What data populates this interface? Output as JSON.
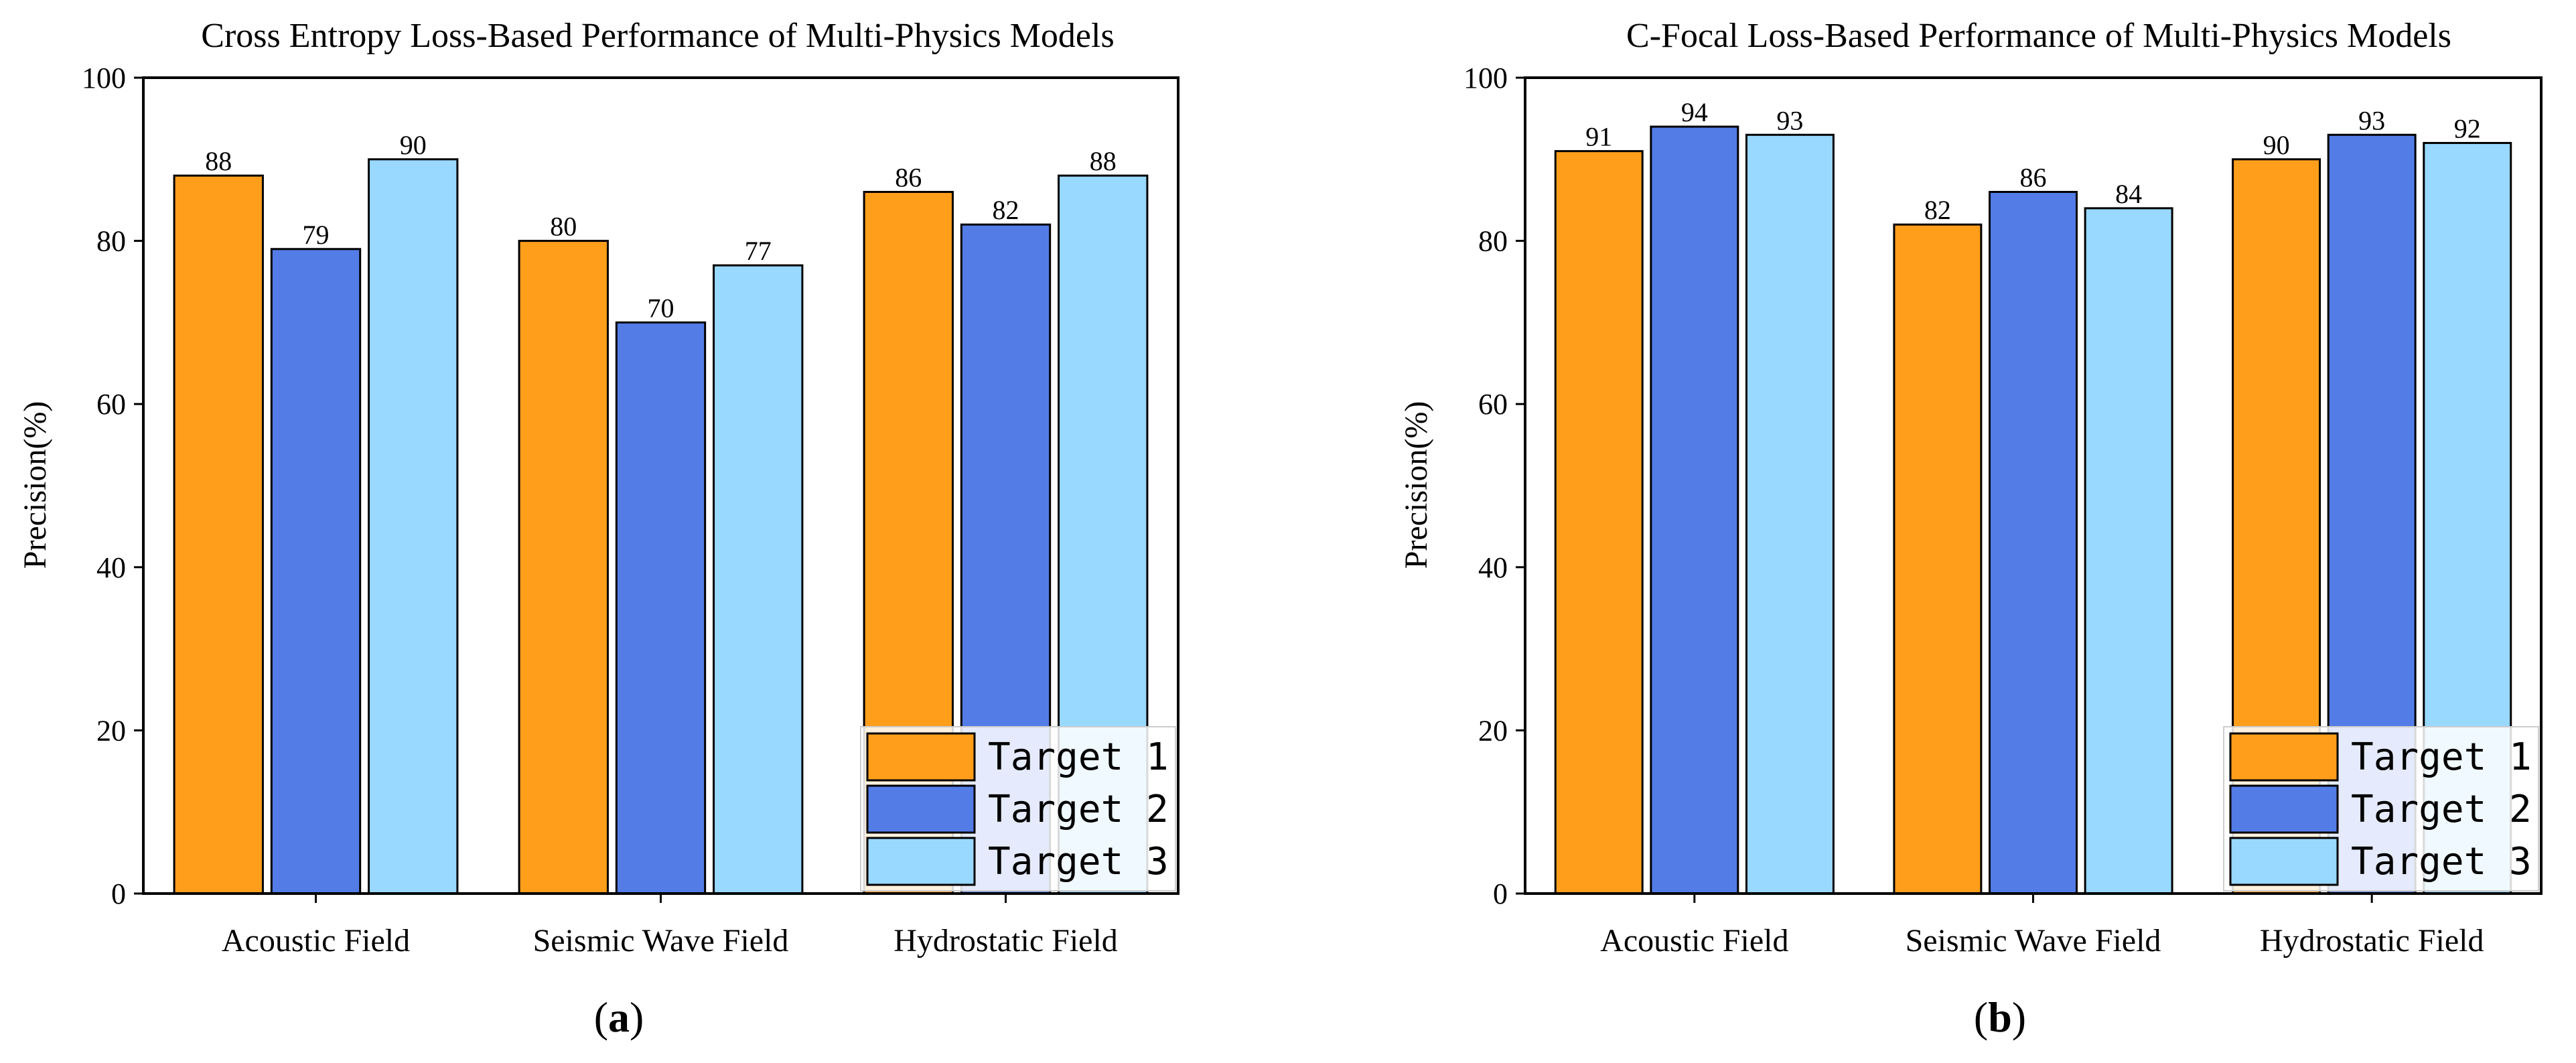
{
  "chart_data": [
    {
      "type": "bar",
      "panel_label": "a",
      "title": "Cross Entropy Loss-Based Performance of Multi-Physics Models",
      "xlabel": "",
      "ylabel": "Precision(%)",
      "ylim": [
        0,
        100
      ],
      "yticks": [
        0,
        20,
        40,
        60,
        80,
        100
      ],
      "categories": [
        "Acoustic Field",
        "Seismic Wave Field",
        "Hydrostatic Field"
      ],
      "series": [
        {
          "name": "Target 1",
          "color": "#FF9E1B",
          "values": [
            88,
            80,
            86
          ]
        },
        {
          "name": "Target 2",
          "color": "#537CE6",
          "values": [
            79,
            70,
            82
          ]
        },
        {
          "name": "Target 3",
          "color": "#99D8FF",
          "values": [
            90,
            77,
            88
          ]
        }
      ],
      "legend_position": "bottom-right"
    },
    {
      "type": "bar",
      "panel_label": "b",
      "title": "C-Focal Loss-Based Performance of Multi-Physics Models",
      "xlabel": "",
      "ylabel": "Precision(%)",
      "ylim": [
        0,
        100
      ],
      "yticks": [
        0,
        20,
        40,
        60,
        80,
        100
      ],
      "categories": [
        "Acoustic Field",
        "Seismic Wave Field",
        "Hydrostatic Field"
      ],
      "series": [
        {
          "name": "Target 1",
          "color": "#FF9E1B",
          "values": [
            91,
            82,
            90
          ]
        },
        {
          "name": "Target 2",
          "color": "#537CE6",
          "values": [
            94,
            86,
            93
          ]
        },
        {
          "name": "Target 3",
          "color": "#99D8FF",
          "values": [
            93,
            84,
            92
          ]
        }
      ],
      "legend_position": "bottom-right"
    }
  ]
}
